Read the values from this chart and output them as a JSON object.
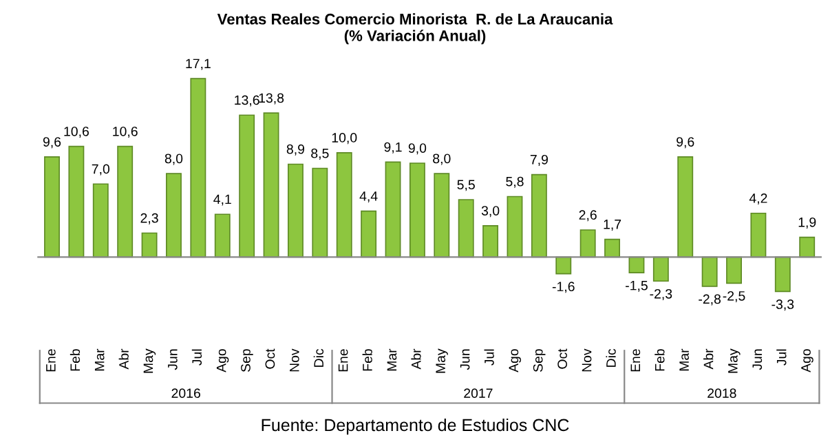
{
  "chart_data": {
    "type": "bar",
    "title": "Ventas Reales Comercio Minorista  R. de La Araucania\n(% Variación Anual)",
    "categories": [
      "Ene",
      "Feb",
      "Mar",
      "Abr",
      "May",
      "Jun",
      "Jul",
      "Ago",
      "Sep",
      "Oct",
      "Nov",
      "Dic",
      "Ene",
      "Feb",
      "Mar",
      "Abr",
      "May",
      "Jun",
      "Jul",
      "Ago",
      "Sep",
      "Oct",
      "Nov",
      "Dic",
      "Ene",
      "Feb",
      "Mar",
      "Abr",
      "May",
      "Jun",
      "Jul",
      "Ago"
    ],
    "values": [
      9.6,
      10.6,
      7.0,
      10.6,
      2.3,
      8.0,
      17.1,
      4.1,
      13.6,
      13.8,
      8.9,
      8.5,
      10.0,
      4.4,
      9.1,
      9.0,
      8.0,
      5.5,
      3.0,
      5.8,
      7.9,
      -1.6,
      2.6,
      1.7,
      -1.5,
      -2.3,
      9.6,
      -2.8,
      -2.5,
      4.2,
      -3.3,
      1.9
    ],
    "value_labels": [
      "9,6",
      "10,6",
      "7,0",
      "10,6",
      "2,3",
      "8,0",
      "17,1",
      "4,1",
      "13,6",
      "13,8",
      "8,9",
      "8,5",
      "10,0",
      "4,4",
      "9,1",
      "9,0",
      "8,0",
      "5,5",
      "3,0",
      "5,8",
      "7,9",
      "-1,6",
      "2,6",
      "1,7",
      "-1,5",
      "-2,3",
      "9,6",
      "-2,8",
      "-2,5",
      "4,2",
      "-3,3",
      "1,9"
    ],
    "color": "#8dc63f",
    "grid": false,
    "legend": false,
    "annotations": [
      "2016",
      "2017",
      "2018",
      "Fuente: Departamento de Estudios CNC"
    ]
  }
}
